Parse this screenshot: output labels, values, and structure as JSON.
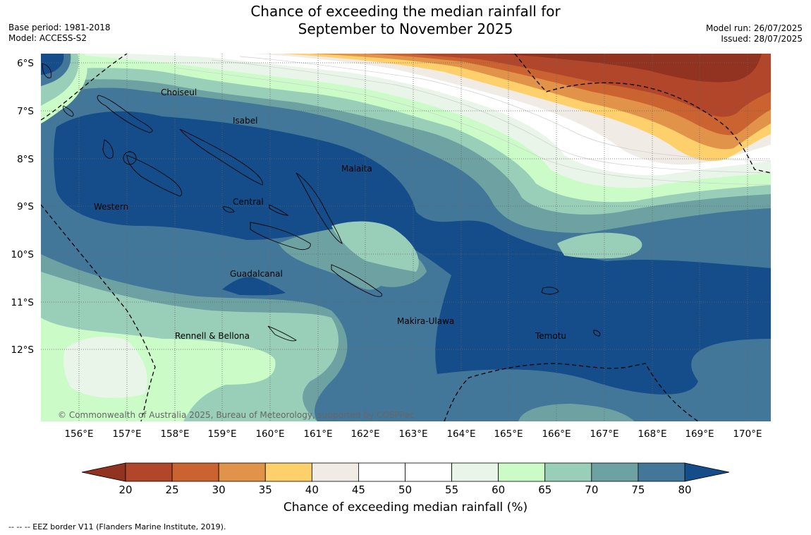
{
  "title": {
    "line1": "Chance of exceeding the median rainfall for",
    "line2": "September to November 2025"
  },
  "meta_left": {
    "base_period": "Base period: 1981-2018",
    "model": "Model: ACCESS-S2"
  },
  "meta_right": {
    "model_run": "Model run: 26/07/2025",
    "issued": "Issued: 28/07/2025"
  },
  "map": {
    "lat_labels": [
      "6°S",
      "7°S",
      "8°S",
      "9°S",
      "10°S",
      "11°S",
      "12°S"
    ],
    "lon_labels": [
      "156°E",
      "157°E",
      "158°E",
      "159°E",
      "160°E",
      "161°E",
      "162°E",
      "163°E",
      "164°E",
      "165°E",
      "166°E",
      "167°E",
      "168°E",
      "169°E",
      "170°E"
    ],
    "places": [
      "Choiseul",
      "Isabel",
      "Malaita",
      "Western",
      "Central",
      "Guadalcanal",
      "Makira-Ulawa",
      "Rennell & Bellona",
      "Temotu"
    ],
    "copyright": "© Commonwealth of Australia 2025, Bureau of Meteorology, supported by COSPPac"
  },
  "colorbar": {
    "ticks": [
      "20",
      "25",
      "30",
      "35",
      "40",
      "45",
      "50",
      "55",
      "60",
      "65",
      "70",
      "75",
      "80"
    ],
    "colors": [
      "#b1462a",
      "#cb6331",
      "#e09349",
      "#fdd06b",
      "#f1ebe6",
      "#ffffff",
      "#ffffff",
      "#e9f5e9",
      "#cbfcc8",
      "#99cfb9",
      "#6ea2a2",
      "#42779a"
    ],
    "under_color": "#923221",
    "over_color": "#144d89",
    "title": "Chance of exceeding median rainfall (%)"
  },
  "footnote": "--  --  -- EEZ border V11 (Flanders Marine Institute, 2019)."
}
